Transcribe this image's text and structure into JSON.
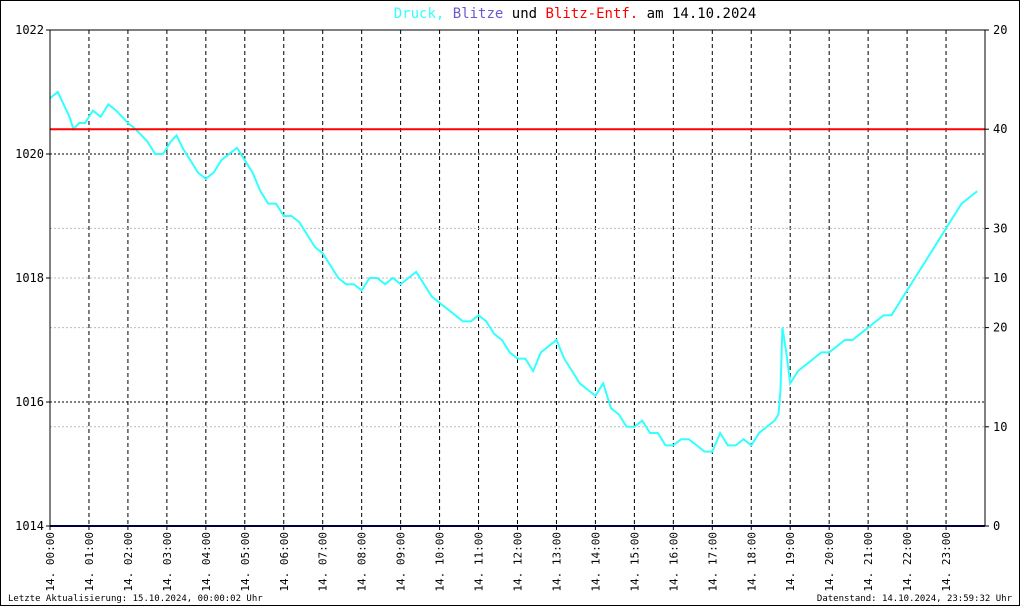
{
  "title": {
    "part1": "Druck,",
    "part2": "Blitze",
    "part3": "und",
    "part4": "Blitz-Entf.",
    "part5": "am 14.10.2024",
    "colors": {
      "part1": "#33ffff",
      "part2": "#6a5acd",
      "part3": "#000000",
      "part4": "#ff0000",
      "part5": "#000000"
    }
  },
  "footer": {
    "left": "Letzte Aktualisierung: 15.10.2024, 00:00:02 Uhr",
    "right": "Datenstand: 14.10.2024, 23:59:32 Uhr"
  },
  "chart_data": {
    "type": "line",
    "x_tick_labels": [
      "14. 00:00",
      "14. 01:00",
      "14. 02:00",
      "14. 03:00",
      "14. 04:00",
      "14. 05:00",
      "14. 06:00",
      "14. 07:00",
      "14. 08:00",
      "14. 09:00",
      "14. 10:00",
      "14. 11:00",
      "14. 12:00",
      "14. 13:00",
      "14. 14:00",
      "14. 15:00",
      "14. 16:00",
      "14. 17:00",
      "14. 18:00",
      "14. 19:00",
      "14. 20:00",
      "14. 21:00",
      "14. 22:00",
      "14. 23:00"
    ],
    "xlim": [
      0,
      24
    ],
    "y_left": {
      "ylim": [
        1014,
        1022
      ],
      "ticks": [
        1014,
        1016,
        1018,
        1020,
        1022
      ]
    },
    "y_right_ticks": [
      {
        "label": "0",
        "level": 1014
      },
      {
        "label": "10",
        "level": 1015.6
      },
      {
        "label": "20",
        "level": 1017.2
      },
      {
        "label": "10",
        "level": 1018
      },
      {
        "label": "30",
        "level": 1018.8
      },
      {
        "label": "40",
        "level": 1020.4
      },
      {
        "label": "20",
        "level": 1022
      }
    ],
    "grid": true,
    "series": [
      {
        "color": "#33ffff",
        "x": [
          0,
          0.2,
          0.35,
          0.5,
          0.6,
          0.75,
          0.9,
          1.1,
          1.3,
          1.5,
          1.7,
          2.0,
          2.2,
          2.5,
          2.7,
          2.9,
          3.1,
          3.25,
          3.4,
          3.6,
          3.8,
          4.0,
          4.2,
          4.4,
          4.6,
          4.8,
          5.0,
          5.2,
          5.4,
          5.6,
          5.8,
          6.0,
          6.2,
          6.4,
          6.6,
          6.8,
          7.0,
          7.2,
          7.4,
          7.6,
          7.8,
          8.0,
          8.2,
          8.4,
          8.6,
          8.8,
          9.0,
          9.2,
          9.4,
          9.6,
          9.8,
          10.0,
          10.2,
          10.4,
          10.6,
          10.8,
          11.0,
          11.2,
          11.4,
          11.6,
          11.8,
          12.0,
          12.2,
          12.4,
          12.6,
          12.8,
          13.0,
          13.2,
          13.4,
          13.6,
          13.8,
          14.0,
          14.2,
          14.4,
          14.6,
          14.8,
          15.0,
          15.2,
          15.4,
          15.6,
          15.8,
          16.0,
          16.2,
          16.4,
          16.6,
          16.8,
          17.0,
          17.2,
          17.4,
          17.6,
          17.8,
          18.0,
          18.2,
          18.4,
          18.6,
          18.7,
          18.75,
          18.8,
          18.9,
          19.0,
          19.2,
          19.4,
          19.6,
          19.8,
          20.0,
          20.2,
          20.4,
          20.6,
          20.8,
          21.0,
          21.2,
          21.4,
          21.6,
          21.8,
          22.0,
          22.2,
          22.4,
          22.6,
          22.8,
          23.0,
          23.2,
          23.4,
          23.6,
          23.8
        ],
        "values": [
          1020.9,
          1021.0,
          1020.8,
          1020.6,
          1020.4,
          1020.5,
          1020.5,
          1020.7,
          1020.6,
          1020.8,
          1020.7,
          1020.5,
          1020.4,
          1020.2,
          1020.0,
          1020.0,
          1020.2,
          1020.3,
          1020.1,
          1019.9,
          1019.7,
          1019.6,
          1019.7,
          1019.9,
          1020.0,
          1020.1,
          1019.9,
          1019.7,
          1019.4,
          1019.2,
          1019.2,
          1019.0,
          1019.0,
          1018.9,
          1018.7,
          1018.5,
          1018.4,
          1018.2,
          1018.0,
          1017.9,
          1017.9,
          1017.8,
          1018.0,
          1018.0,
          1017.9,
          1018.0,
          1017.9,
          1018.0,
          1018.1,
          1017.9,
          1017.7,
          1017.6,
          1017.5,
          1017.4,
          1017.3,
          1017.3,
          1017.4,
          1017.3,
          1017.1,
          1017.0,
          1016.8,
          1016.7,
          1016.7,
          1016.5,
          1016.8,
          1016.9,
          1017.0,
          1016.7,
          1016.5,
          1016.3,
          1016.2,
          1016.1,
          1016.3,
          1015.9,
          1015.8,
          1015.6,
          1015.6,
          1015.7,
          1015.5,
          1015.5,
          1015.3,
          1015.3,
          1015.4,
          1015.4,
          1015.3,
          1015.2,
          1015.2,
          1015.5,
          1015.3,
          1015.3,
          1015.4,
          1015.3,
          1015.5,
          1015.6,
          1015.7,
          1015.8,
          1016.2,
          1017.2,
          1016.8,
          1016.3,
          1016.5,
          1016.6,
          1016.7,
          1016.8,
          1016.8,
          1016.9,
          1017.0,
          1017.0,
          1017.1,
          1017.2,
          1017.3,
          1017.4,
          1017.4,
          1017.6,
          1017.8,
          1018.0,
          1018.2,
          1018.4,
          1018.6,
          1018.8,
          1019.0,
          1019.2,
          1019.3,
          1019.4
        ]
      },
      {
        "color": "#ff0000",
        "level": 1020.4,
        "x": [
          0,
          24
        ]
      },
      {
        "color": "#000080",
        "level": 1014,
        "x": [
          0,
          24
        ]
      }
    ]
  }
}
